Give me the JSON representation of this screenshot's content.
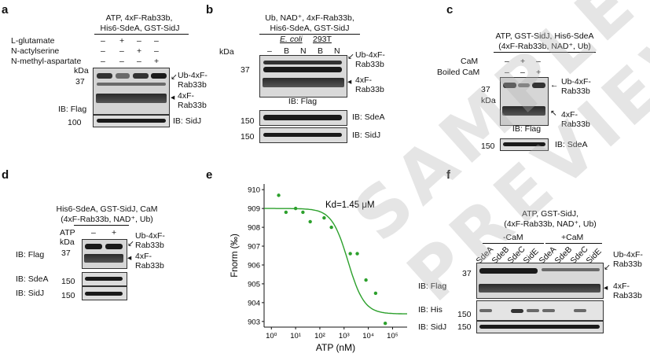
{
  "panels": {
    "a": {
      "label": "a",
      "header1": "ATP, 4xF-Rab33b,",
      "header2": "His6-SdeA, GST-SidJ",
      "rows": [
        {
          "name": "L-glutamate",
          "signs": [
            "–",
            "+",
            "–",
            "–"
          ]
        },
        {
          "name": "N-actylserine",
          "signs": [
            "–",
            "–",
            "+",
            "–"
          ]
        },
        {
          "name": "N-methyl-aspartate",
          "signs": [
            "–",
            "–",
            "–",
            "+"
          ]
        }
      ],
      "kda": "kDa",
      "mw37": "37",
      "mw100": "100",
      "ib_flag": "IB: Flag",
      "ib_sidj": "IB: SidJ",
      "ub_label1": "Ub-4xF-",
      "ub_label2": "Rab33b",
      "rab_label1": "4xF-",
      "rab_label2": "Rab33b"
    },
    "b": {
      "label": "b",
      "header1": "Ub, NAD⁺, 4xF-Rab33b,",
      "header2": "His6-SdeA, GST-SidJ",
      "ecoli": "E. coli",
      "t293": "293T",
      "lanes": [
        "–",
        "B",
        "N",
        "B",
        "N"
      ],
      "kda": "kDa",
      "mw37": "37",
      "mw150a": "150",
      "mw150b": "150",
      "ib_flag": "IB: Flag",
      "ib_sdea": "IB: SdeA",
      "ib_sidj": "IB: SidJ",
      "ub_label1": "Ub-4xF-",
      "ub_label2": "Rab33b",
      "rab_label1": "4xF-",
      "rab_label2": "Rab33b"
    },
    "c": {
      "label": "c",
      "header1": "ATP, GST-SidJ, His6-SdeA",
      "header2": "(4xF-Rab33b, NAD⁺, Ub)",
      "cam": "CaM",
      "boiled": "Boiled CaM",
      "cam_signs": [
        "–",
        "+",
        "–"
      ],
      "boiled_signs": [
        "–",
        "–",
        "+"
      ],
      "mw37": "37",
      "kda": "kDa",
      "mw150": "150",
      "ib_flag": "IB: Flag",
      "ib_sdea": "IB: SdeA",
      "ub_label1": "Ub-4xF-",
      "ub_label2": "Rab33b",
      "rab_label1": "4xF-",
      "rab_label2": "Rab33b"
    },
    "d": {
      "label": "d",
      "header1": "His6-SdeA, GST-SidJ, CaM",
      "header2": "(4xF-Rab33b, NAD⁺, Ub)",
      "atp": "ATP",
      "atp_signs": [
        "–",
        "+"
      ],
      "kda": "kDa",
      "mw37": "37",
      "mw150a": "150",
      "mw150b": "150",
      "ib_flag": "IB: Flag",
      "ib_sdea": "IB: SdeA",
      "ib_sidj": "IB: SidJ",
      "ub_label1": "Ub-4xF-",
      "ub_label2": "Rab33b",
      "rab_label1": "4xF-",
      "rab_label2": "Rab33b"
    },
    "e": {
      "label": "e",
      "kd_text": "Kd=1.45 μM",
      "ylabel": "Fnorm (‰)",
      "xlabel": "ATP  (nM)"
    },
    "f": {
      "label": "f",
      "header1": "ATP, GST-SidJ,",
      "header2": "(4xF-Rab33b, NAD⁺, Ub)",
      "minus_cam": "-CaM",
      "plus_cam": "+CaM",
      "lanes": [
        "SdeA",
        "SdeB",
        "SdeC",
        "SidE",
        "SdeA",
        "SdeB",
        "SdeC",
        "SidE"
      ],
      "mw37": "37",
      "mw150a": "150",
      "mw150b": "150",
      "ib_flag": "IB: Flag",
      "ib_his": "IB: His",
      "ib_sidj": "IB: SidJ",
      "ub_label1": "Ub-4xF-",
      "ub_label2": "Rab33b",
      "rab_label1": "4xF-",
      "rab_label2": "Rab33b"
    }
  },
  "watermark": "SAMPLE PREVIEW",
  "chart_data": {
    "type": "scatter",
    "title": "",
    "xlabel": "ATP  (nM)",
    "ylabel": "Fnorm (‰)",
    "x_scale": "log",
    "xlim": [
      0.5,
      400000
    ],
    "ylim": [
      902.7,
      910.3
    ],
    "x_ticks": [
      1,
      10,
      100,
      1000,
      10000,
      100000
    ],
    "x_tick_labels": [
      "10⁰",
      "10¹",
      "10²",
      "10³",
      "10⁴",
      "10⁵"
    ],
    "y_ticks": [
      903,
      904,
      905,
      906,
      907,
      908,
      909,
      910
    ],
    "points": [
      {
        "x": 2,
        "y": 909.7
      },
      {
        "x": 4,
        "y": 908.8
      },
      {
        "x": 10,
        "y": 909.0
      },
      {
        "x": 20,
        "y": 908.8
      },
      {
        "x": 40,
        "y": 908.3
      },
      {
        "x": 150,
        "y": 908.5
      },
      {
        "x": 300,
        "y": 908.0
      },
      {
        "x": 1800,
        "y": 906.6
      },
      {
        "x": 3500,
        "y": 906.6
      },
      {
        "x": 8000,
        "y": 905.2
      },
      {
        "x": 20000,
        "y": 904.5
      },
      {
        "x": 50000,
        "y": 902.9
      }
    ],
    "fit": {
      "top": 909.0,
      "bottom": 903.4,
      "kd_nM": 1450
    },
    "annotation": "Kd=1.45 μM",
    "color": "#2ca02c",
    "grid": false
  }
}
